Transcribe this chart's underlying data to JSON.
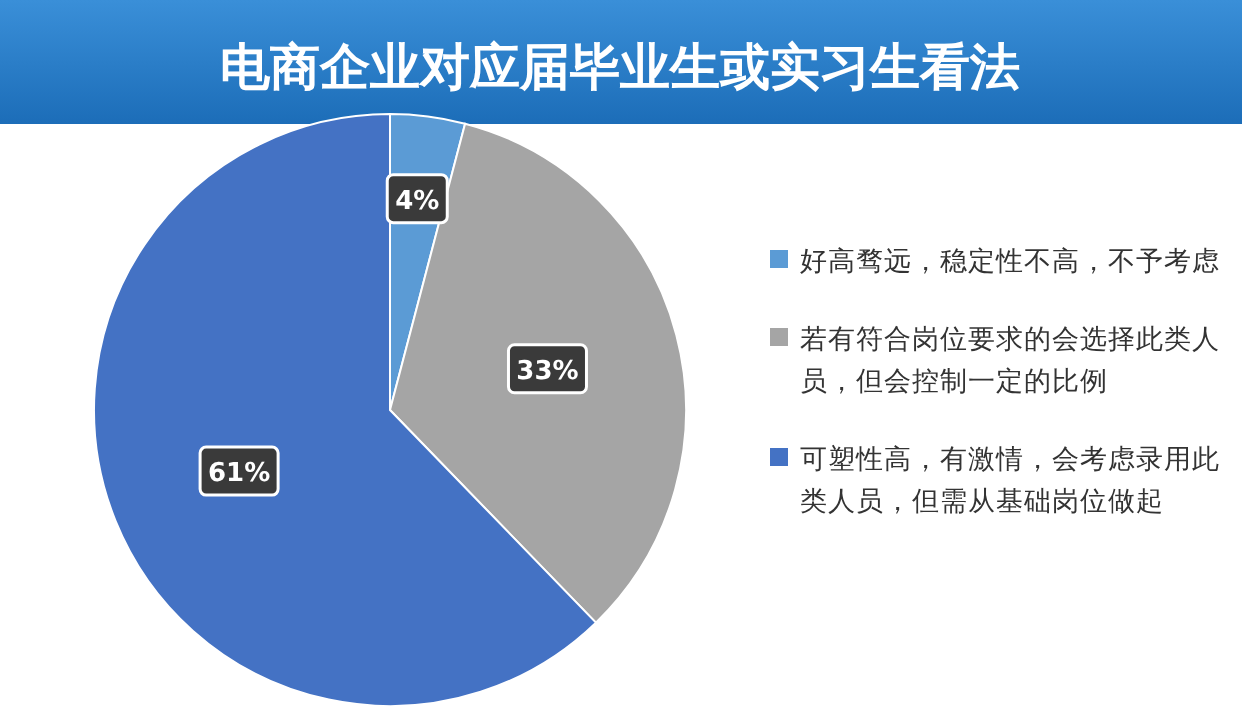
{
  "chart_data": {
    "type": "pie",
    "title": "电商企业对应届毕业生或实习生看法",
    "categories": [
      "好高骛远，稳定性不高，不予考虑",
      "若有符合岗位要求的会选择此类人员，但会控制一定的比例",
      "可塑性高，有激情，会考虑录用此类人员，但需从基础岗位做起"
    ],
    "values": [
      4,
      33,
      61
    ],
    "colors": [
      "#5b9bd5",
      "#a5a5a5",
      "#4472c4"
    ],
    "value_labels": [
      "4%",
      "33%",
      "61%"
    ],
    "legend": "right"
  }
}
